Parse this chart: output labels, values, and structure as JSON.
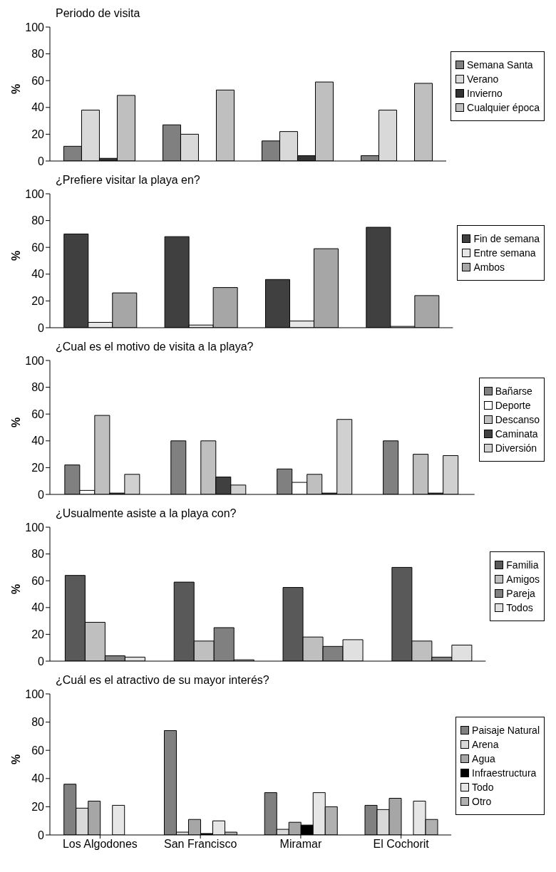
{
  "chart_data": [
    {
      "type": "bar",
      "title": "Periodo de visita",
      "ylabel": "%",
      "categories": [
        null,
        null,
        null,
        null
      ],
      "ylim": [
        0,
        100
      ],
      "yticks": [
        0,
        20,
        40,
        60,
        80,
        100
      ],
      "grid": false,
      "legend": "right",
      "tick_labels": "y",
      "series": [
        {
          "name": "Semana Santa",
          "color": "#808080",
          "values": [
            11,
            27,
            15,
            4
          ]
        },
        {
          "name": "Verano",
          "color": "#d9d9d9",
          "values": [
            38,
            20,
            22,
            38
          ]
        },
        {
          "name": "Invierno",
          "color": "#333333",
          "values": [
            2,
            0,
            4,
            0
          ]
        },
        {
          "name": "Cualquier época",
          "color": "#bfbfbf",
          "values": [
            49,
            53,
            59,
            58
          ]
        }
      ]
    },
    {
      "type": "bar",
      "title": "¿Prefiere visitar la playa en?",
      "ylabel": "%",
      "categories": [
        null,
        null,
        null,
        null
      ],
      "ylim": [
        0,
        100
      ],
      "yticks": [
        0,
        20,
        40,
        60,
        80,
        100
      ],
      "grid": false,
      "legend": "right",
      "tick_labels": "y",
      "series": [
        {
          "name": "Fin de semana",
          "color": "#404040",
          "values": [
            70,
            68,
            36,
            75
          ]
        },
        {
          "name": "Entre semana",
          "color": "#e6e6e6",
          "values": [
            4,
            2,
            5,
            1
          ]
        },
        {
          "name": "Ambos",
          "color": "#a6a6a6",
          "values": [
            26,
            30,
            59,
            24
          ]
        }
      ]
    },
    {
      "type": "bar",
      "title": "¿Cual es el motivo de visita a la playa?",
      "ylabel": "%",
      "categories": [
        null,
        null,
        null,
        null
      ],
      "ylim": [
        0,
        100
      ],
      "yticks": [
        0,
        20,
        40,
        60,
        80,
        100
      ],
      "grid": false,
      "legend": "right",
      "tick_labels": "y",
      "series": [
        {
          "name": "Bañarse",
          "color": "#808080",
          "values": [
            22,
            40,
            19,
            40
          ]
        },
        {
          "name": "Deporte",
          "color": "#ffffff",
          "values": [
            3,
            0,
            9,
            0
          ]
        },
        {
          "name": "Descanso",
          "color": "#bfbfbf",
          "values": [
            59,
            40,
            15,
            30
          ]
        },
        {
          "name": "Caminata",
          "color": "#404040",
          "values": [
            1,
            13,
            1,
            1
          ]
        },
        {
          "name": "Diversión",
          "color": "#d0d0d0",
          "values": [
            15,
            7,
            56,
            29
          ]
        }
      ]
    },
    {
      "type": "bar",
      "title": "¿Usualmente asiste a la playa con?",
      "ylabel": "%",
      "categories": [
        null,
        null,
        null,
        null
      ],
      "ylim": [
        0,
        100
      ],
      "yticks": [
        0,
        20,
        40,
        60,
        80,
        100
      ],
      "grid": false,
      "legend": "right",
      "tick_labels": "y",
      "series": [
        {
          "name": "Familia",
          "color": "#595959",
          "values": [
            64,
            59,
            55,
            70
          ]
        },
        {
          "name": "Amigos",
          "color": "#bfbfbf",
          "values": [
            29,
            15,
            18,
            15
          ]
        },
        {
          "name": "Pareja",
          "color": "#808080",
          "values": [
            4,
            25,
            11,
            3
          ]
        },
        {
          "name": "Todos",
          "color": "#e0e0e0",
          "values": [
            3,
            1,
            16,
            12
          ]
        }
      ]
    },
    {
      "type": "bar",
      "title": "¿Cuál es el atractivo de su mayor interés?",
      "ylabel": "%",
      "categories": [
        "Los Algodones",
        "San Francisco",
        "Miramar",
        "El Cochorit"
      ],
      "ylim": [
        0,
        100
      ],
      "yticks": [
        0,
        20,
        40,
        60,
        80,
        100
      ],
      "grid": false,
      "legend": "right",
      "series": [
        {
          "name": "Paisaje Natural",
          "color": "#808080",
          "values": [
            36,
            74,
            30,
            21
          ]
        },
        {
          "name": "Arena",
          "color": "#d9d9d9",
          "values": [
            19,
            2,
            4,
            18
          ]
        },
        {
          "name": "Agua",
          "color": "#a6a6a6",
          "values": [
            24,
            11,
            9,
            26
          ]
        },
        {
          "name": "Infraestructura",
          "color": "#000000",
          "values": [
            0,
            1,
            7,
            0
          ]
        },
        {
          "name": "Todo",
          "color": "#e6e6e6",
          "values": [
            21,
            10,
            30,
            24
          ]
        },
        {
          "name": "Otro",
          "color": "#b0b0b0",
          "values": [
            0,
            2,
            20,
            11
          ]
        }
      ]
    }
  ]
}
